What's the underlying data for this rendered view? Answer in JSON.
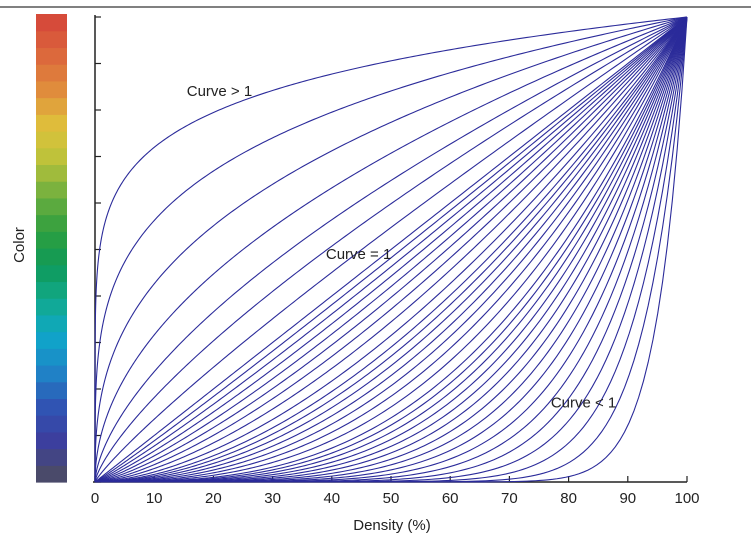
{
  "chart_data": {
    "type": "line",
    "title": "",
    "xlabel": "Density (%)",
    "ylabel": "Color",
    "xlim": [
      0,
      100
    ],
    "ylim": [
      0,
      1
    ],
    "x_ticks": [
      "0",
      "10",
      "20",
      "30",
      "40",
      "50",
      "60",
      "70",
      "80",
      "90",
      "100"
    ],
    "y_tick_labels_shown": false,
    "y_tick_count": 11,
    "grid": false,
    "line_color": "#2b2b9a",
    "curve_function": "y = (x/100)^(1/curve)",
    "curve_values": [
      0.05,
      0.07,
      0.09,
      0.11,
      0.13,
      0.15,
      0.17,
      0.19,
      0.21,
      0.23,
      0.25,
      0.27,
      0.29,
      0.31,
      0.33,
      0.35,
      0.38,
      0.41,
      0.44,
      0.47,
      0.5,
      0.53,
      0.56,
      0.6,
      0.65,
      0.7,
      0.75,
      0.8,
      0.85,
      0.9,
      0.95,
      1,
      1.15,
      1.35,
      1.6,
      2,
      2.7,
      4,
      7
    ],
    "annotations": [
      {
        "text": "Curve > 1",
        "x": 15.5,
        "y": 0.83
      },
      {
        "text": "Curve = 1",
        "x": 39,
        "y": 0.48
      },
      {
        "text": "Curve < 1",
        "x": 77,
        "y": 0.16
      }
    ],
    "colorbar": {
      "label": "Color",
      "steps": 28,
      "colors_bottom_to_top": [
        "#4a4a6a",
        "#3b3fa0",
        "#2f56b4",
        "#1e86c8",
        "#0fa7c9",
        "#12a98d",
        "#0e9a58",
        "#2f9f3f",
        "#6dae3f",
        "#b9c23a",
        "#dfc23b",
        "#e08f3c",
        "#dc6a3c",
        "#d64b3a"
      ]
    }
  }
}
